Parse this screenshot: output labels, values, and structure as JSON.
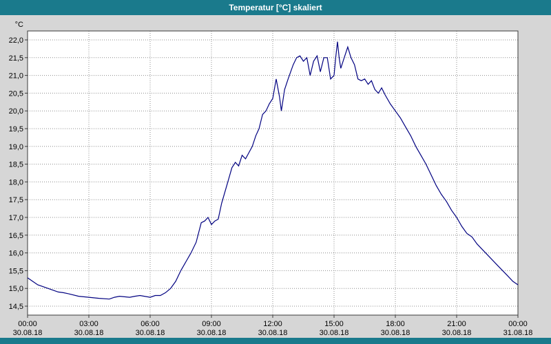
{
  "window": {
    "title": "Temperatur [°C] skaliert"
  },
  "colors": {
    "titlebar": "#1A7A8C",
    "background": "#D6D6D6",
    "plot_bg": "#FFFFFF",
    "grid": "#8C8C8C",
    "frame": "#3A3A3A",
    "line": "#000080",
    "text": "#000000"
  },
  "chart_data": {
    "type": "line",
    "title": "Temperatur [°C] skaliert",
    "xlabel": "",
    "ylabel": "°C",
    "ylim": [
      14.5,
      22.0
    ],
    "ytick_step": 0.5,
    "ytick_labels": [
      "22,0",
      "21,5",
      "21,0",
      "20,5",
      "20,0",
      "19,5",
      "19,0",
      "18,5",
      "18,0",
      "17,5",
      "17,0",
      "16,5",
      "16,0",
      "15,5",
      "15,0",
      "14,5"
    ],
    "xlim_hours": [
      0,
      24
    ],
    "xticks": [
      {
        "hour": 0,
        "time": "00:00",
        "date": "30.08.18"
      },
      {
        "hour": 3,
        "time": "03:00",
        "date": "30.08.18"
      },
      {
        "hour": 6,
        "time": "06:00",
        "date": "30.08.18"
      },
      {
        "hour": 9,
        "time": "09:00",
        "date": "30.08.18"
      },
      {
        "hour": 12,
        "time": "12:00",
        "date": "30.08.18"
      },
      {
        "hour": 15,
        "time": "15:00",
        "date": "30.08.18"
      },
      {
        "hour": 18,
        "time": "18:00",
        "date": "30.08.18"
      },
      {
        "hour": 21,
        "time": "21:00",
        "date": "30.08.18"
      },
      {
        "hour": 24,
        "time": "00:00",
        "date": "31.08.18"
      }
    ],
    "grid": true,
    "legend_position": "none",
    "series": [
      {
        "name": "Temperatur [°C]",
        "x_hours": [
          0,
          0.25,
          0.5,
          0.75,
          1,
          1.25,
          1.5,
          1.75,
          2,
          2.5,
          3,
          3.5,
          4,
          4.25,
          4.5,
          5,
          5.25,
          5.5,
          6,
          6.25,
          6.5,
          6.75,
          7,
          7.25,
          7.5,
          7.75,
          8,
          8.25,
          8.5,
          8.67,
          8.83,
          9,
          9.17,
          9.33,
          9.5,
          9.75,
          10,
          10.17,
          10.33,
          10.5,
          10.67,
          11,
          11.17,
          11.33,
          11.5,
          11.67,
          11.83,
          12,
          12.17,
          12.33,
          12.42,
          12.58,
          12.75,
          13,
          13.17,
          13.33,
          13.5,
          13.67,
          13.83,
          14,
          14.17,
          14.33,
          14.5,
          14.67,
          14.83,
          15,
          15.08,
          15.17,
          15.25,
          15.33,
          15.5,
          15.67,
          15.83,
          16,
          16.17,
          16.33,
          16.5,
          16.67,
          16.83,
          17,
          17.17,
          17.33,
          17.5,
          17.75,
          18,
          18.25,
          18.5,
          18.75,
          19,
          19.25,
          19.5,
          19.75,
          20,
          20.25,
          20.5,
          20.75,
          21,
          21.25,
          21.5,
          21.75,
          22,
          22.25,
          22.5,
          22.75,
          23,
          23.25,
          23.5,
          23.75,
          24
        ],
        "values": [
          15.3,
          15.2,
          15.1,
          15.05,
          15.0,
          14.95,
          14.9,
          14.88,
          14.85,
          14.78,
          14.75,
          14.72,
          14.7,
          14.75,
          14.78,
          14.75,
          14.78,
          14.8,
          14.75,
          14.8,
          14.8,
          14.88,
          15.0,
          15.2,
          15.5,
          15.75,
          16.0,
          16.3,
          16.85,
          16.9,
          17.0,
          16.8,
          16.9,
          16.95,
          17.4,
          17.9,
          18.4,
          18.55,
          18.45,
          18.75,
          18.65,
          19.0,
          19.3,
          19.5,
          19.9,
          20.0,
          20.2,
          20.35,
          20.9,
          20.4,
          20.0,
          20.6,
          20.9,
          21.3,
          21.5,
          21.55,
          21.4,
          21.5,
          21.0,
          21.4,
          21.55,
          21.1,
          21.5,
          21.5,
          20.9,
          21.0,
          21.5,
          21.95,
          21.5,
          21.2,
          21.5,
          21.8,
          21.5,
          21.3,
          20.9,
          20.85,
          20.9,
          20.75,
          20.85,
          20.6,
          20.5,
          20.65,
          20.45,
          20.2,
          20.0,
          19.8,
          19.55,
          19.3,
          19.0,
          18.75,
          18.5,
          18.2,
          17.9,
          17.65,
          17.45,
          17.2,
          17.0,
          16.75,
          16.55,
          16.45,
          16.25,
          16.1,
          15.95,
          15.8,
          15.65,
          15.5,
          15.35,
          15.2,
          15.1
        ]
      }
    ]
  }
}
